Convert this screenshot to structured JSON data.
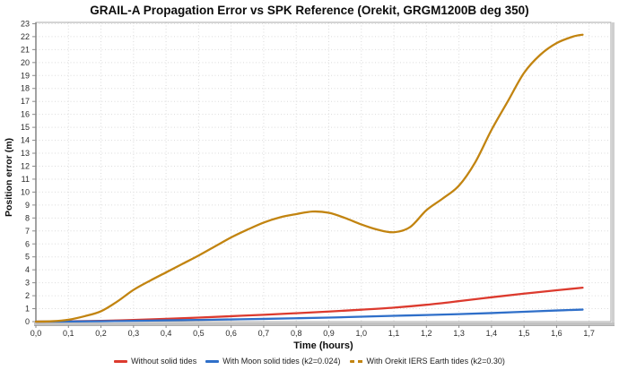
{
  "chart_data": {
    "type": "line",
    "title": "GRAIL-A Propagation Error vs SPK Reference (Orekit, GRGM1200B deg 350)",
    "xlabel": "Time (hours)",
    "ylabel": "Position error (m)",
    "xlim": [
      0,
      1.767
    ],
    "ylim": [
      0,
      23.1
    ],
    "grid": "dotted",
    "legend_position": "bottom-center",
    "x_tick_values": [
      0,
      0.1,
      0.2,
      0.3,
      0.4,
      0.5,
      0.6,
      0.7,
      0.8,
      0.9,
      1.0,
      1.1,
      1.2,
      1.3,
      1.4,
      1.5,
      1.6,
      1.7
    ],
    "x_tick_labels": [
      "0,0",
      "0,1",
      "0,2",
      "0,3",
      "0,4",
      "0,5",
      "0,6",
      "0,7",
      "0,8",
      "0,9",
      "1,0",
      "1,1",
      "1,2",
      "1,3",
      "1,4",
      "1,5",
      "1,6",
      "1,7"
    ],
    "y_tick_values": [
      0,
      1,
      2,
      3,
      4,
      5,
      6,
      7,
      8,
      9,
      10,
      11,
      12,
      13,
      14,
      15,
      16,
      17,
      18,
      19,
      20,
      21,
      22,
      23
    ],
    "y_tick_labels": [
      "0",
      "1",
      "2",
      "3",
      "4",
      "5",
      "6",
      "7",
      "8",
      "9",
      "10",
      "11",
      "12",
      "13",
      "14",
      "15",
      "16",
      "17",
      "18",
      "19",
      "20",
      "21",
      "22",
      "23"
    ],
    "series": [
      {
        "name": "Without solid tides",
        "color": "#DC3A2E",
        "legend_marker": "solid",
        "points": [
          [
            0,
            0
          ],
          [
            0.1,
            0.02
          ],
          [
            0.2,
            0.06
          ],
          [
            0.3,
            0.13
          ],
          [
            0.4,
            0.21
          ],
          [
            0.5,
            0.31
          ],
          [
            0.6,
            0.42
          ],
          [
            0.7,
            0.53
          ],
          [
            0.8,
            0.65
          ],
          [
            0.9,
            0.78
          ],
          [
            1.0,
            0.92
          ],
          [
            1.1,
            1.08
          ],
          [
            1.2,
            1.3
          ],
          [
            1.3,
            1.58
          ],
          [
            1.4,
            1.88
          ],
          [
            1.5,
            2.16
          ],
          [
            1.6,
            2.42
          ],
          [
            1.68,
            2.62
          ]
        ]
      },
      {
        "name": "With Moon solid tides (k2=0.024)",
        "color": "#2F6FC9",
        "legend_marker": "solid",
        "points": [
          [
            0,
            0
          ],
          [
            0.1,
            0.01
          ],
          [
            0.2,
            0.03
          ],
          [
            0.3,
            0.06
          ],
          [
            0.4,
            0.1
          ],
          [
            0.5,
            0.13
          ],
          [
            0.6,
            0.17
          ],
          [
            0.7,
            0.21
          ],
          [
            0.8,
            0.26
          ],
          [
            0.9,
            0.31
          ],
          [
            1.0,
            0.38
          ],
          [
            1.1,
            0.45
          ],
          [
            1.2,
            0.51
          ],
          [
            1.3,
            0.58
          ],
          [
            1.4,
            0.66
          ],
          [
            1.5,
            0.76
          ],
          [
            1.6,
            0.86
          ],
          [
            1.68,
            0.93
          ]
        ]
      },
      {
        "name": "With Orekit IERS Earth tides (k2=0.30)",
        "color": "#C28410",
        "legend_marker": "dashed",
        "points": [
          [
            0,
            0
          ],
          [
            0.05,
            0.03
          ],
          [
            0.1,
            0.15
          ],
          [
            0.15,
            0.42
          ],
          [
            0.2,
            0.8
          ],
          [
            0.25,
            1.55
          ],
          [
            0.3,
            2.45
          ],
          [
            0.35,
            3.15
          ],
          [
            0.4,
            3.8
          ],
          [
            0.45,
            4.45
          ],
          [
            0.5,
            5.1
          ],
          [
            0.55,
            5.8
          ],
          [
            0.6,
            6.5
          ],
          [
            0.65,
            7.1
          ],
          [
            0.7,
            7.65
          ],
          [
            0.75,
            8.05
          ],
          [
            0.8,
            8.3
          ],
          [
            0.85,
            8.5
          ],
          [
            0.9,
            8.4
          ],
          [
            0.95,
            8.0
          ],
          [
            1.0,
            7.5
          ],
          [
            1.05,
            7.1
          ],
          [
            1.1,
            6.9
          ],
          [
            1.15,
            7.3
          ],
          [
            1.2,
            8.6
          ],
          [
            1.25,
            9.5
          ],
          [
            1.3,
            10.5
          ],
          [
            1.35,
            12.3
          ],
          [
            1.4,
            14.8
          ],
          [
            1.45,
            17.0
          ],
          [
            1.5,
            19.2
          ],
          [
            1.55,
            20.6
          ],
          [
            1.6,
            21.5
          ],
          [
            1.65,
            22.0
          ],
          [
            1.68,
            22.15
          ]
        ]
      }
    ],
    "style": {
      "grid_color": "#DBDBDB",
      "border_color": "#A8A8A8",
      "axis_line_color": "#7A7A7A",
      "tick_color": "#8A8A8A",
      "tick_label_color": "#2b2b2b",
      "bevel_color": "#C2C2C2"
    }
  }
}
